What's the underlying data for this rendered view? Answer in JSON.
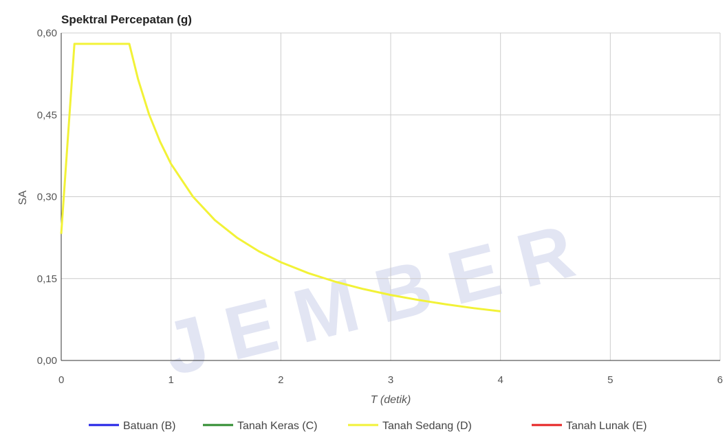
{
  "chart_data": {
    "type": "line",
    "title": "Spektral Percepatan (g)",
    "xlabel": "T (detik)",
    "ylabel": "SA",
    "xlim": [
      0,
      6
    ],
    "ylim": [
      0,
      0.6
    ],
    "x_ticks": [
      0,
      1,
      2,
      3,
      4,
      5,
      6
    ],
    "y_ticks": [
      0.0,
      0.15,
      0.3,
      0.45,
      0.6
    ],
    "y_tick_labels": [
      "0,00",
      "0,15",
      "0,30",
      "0,45",
      "0,60"
    ],
    "x_tick_labels": [
      "0",
      "1",
      "2",
      "3",
      "4",
      "5",
      "6"
    ],
    "grid": true,
    "legend_position": "bottom",
    "series": [
      {
        "name": "Batuan (B)",
        "color": "#1f1fe6",
        "x": [],
        "y": []
      },
      {
        "name": "Tanah Keras (C)",
        "color": "#2e8b2e",
        "x": [],
        "y": []
      },
      {
        "name": "Tanah Sedang (D)",
        "color": "#f2f237",
        "x": [
          0,
          0.12,
          0.2,
          0.3,
          0.4,
          0.5,
          0.6,
          0.62,
          0.7,
          0.8,
          0.9,
          1.0,
          1.2,
          1.4,
          1.6,
          1.8,
          2.0,
          2.25,
          2.5,
          2.75,
          3.0,
          3.25,
          3.5,
          3.75,
          4.0
        ],
        "y": [
          0.232,
          0.58,
          0.58,
          0.58,
          0.58,
          0.58,
          0.58,
          0.58,
          0.515,
          0.451,
          0.401,
          0.36,
          0.3,
          0.257,
          0.225,
          0.2,
          0.18,
          0.16,
          0.144,
          0.131,
          0.12,
          0.111,
          0.103,
          0.096,
          0.09
        ]
      },
      {
        "name": "Tanah Lunak (E)",
        "color": "#e62020",
        "x": [],
        "y": []
      }
    ]
  },
  "watermark": {
    "text": "JEMBER"
  }
}
